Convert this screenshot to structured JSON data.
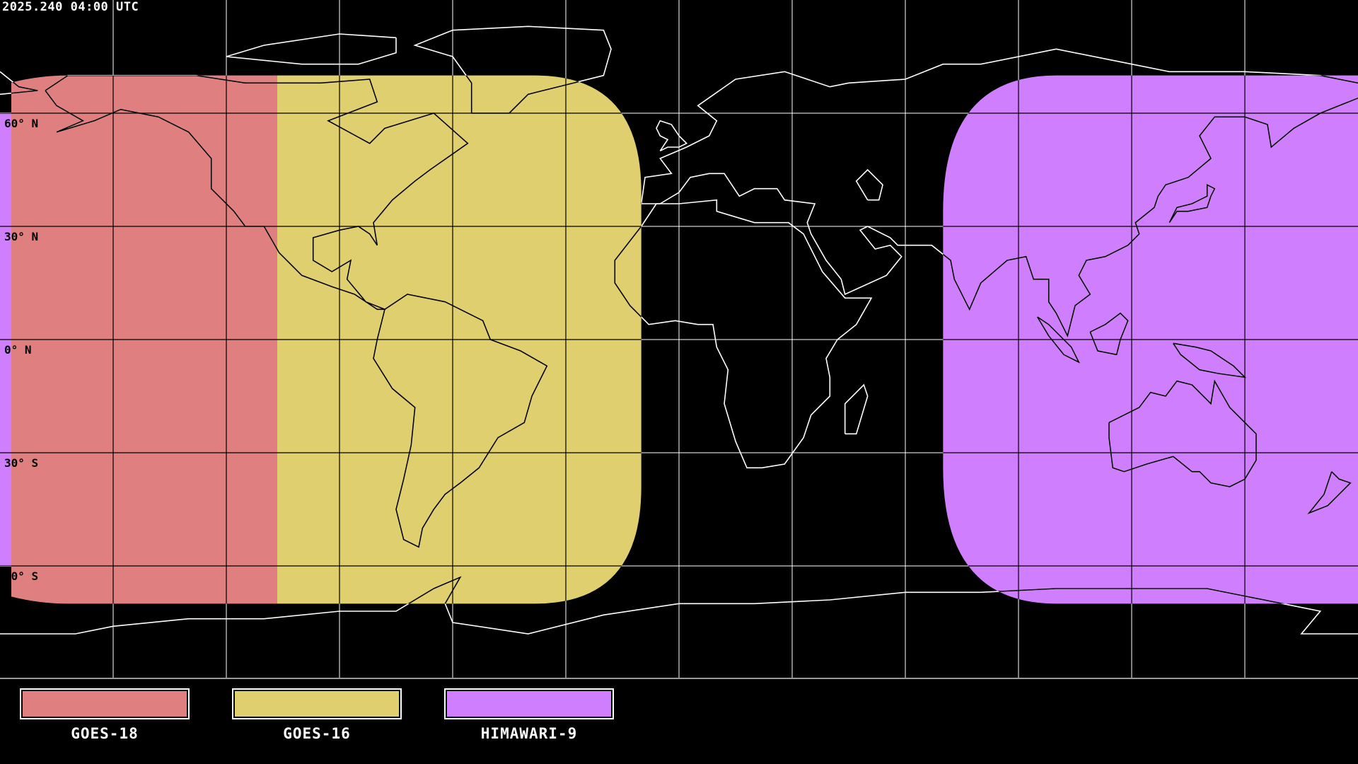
{
  "header": {
    "timestamp": "2025.240 04:00 UTC"
  },
  "map": {
    "projection": "equirectangular",
    "background": "#000000",
    "grid_lon_step_deg": 30,
    "grid_lat_step_deg": 30,
    "lat_labels": [
      {
        "lat": 60,
        "text": "60° N"
      },
      {
        "lat": 30,
        "text": "30° N"
      },
      {
        "lat": 0,
        "text": "0° N"
      },
      {
        "lat": -30,
        "text": "30° S"
      },
      {
        "lat": -60,
        "text": "60° S"
      }
    ],
    "coverage": [
      {
        "name": "GOES-18",
        "color": "#e07f80",
        "lon": [
          -177,
          -106.5
        ],
        "lat": [
          -70,
          70
        ]
      },
      {
        "name": "GOES-16",
        "color": "#dfcf6f",
        "lon": [
          -106.5,
          -10
        ],
        "lat": [
          -70,
          70
        ]
      },
      {
        "name": "HIMAWARI-9",
        "color": "#cf7ffe",
        "lon": [
          70,
          183
        ],
        "lat": [
          -70,
          70
        ]
      }
    ]
  },
  "legend": [
    {
      "label": "GOES-18",
      "color": "#e07f80"
    },
    {
      "label": "GOES-16",
      "color": "#dfcf6f"
    },
    {
      "label": "HIMAWARI-9",
      "color": "#cf7ffe"
    }
  ]
}
